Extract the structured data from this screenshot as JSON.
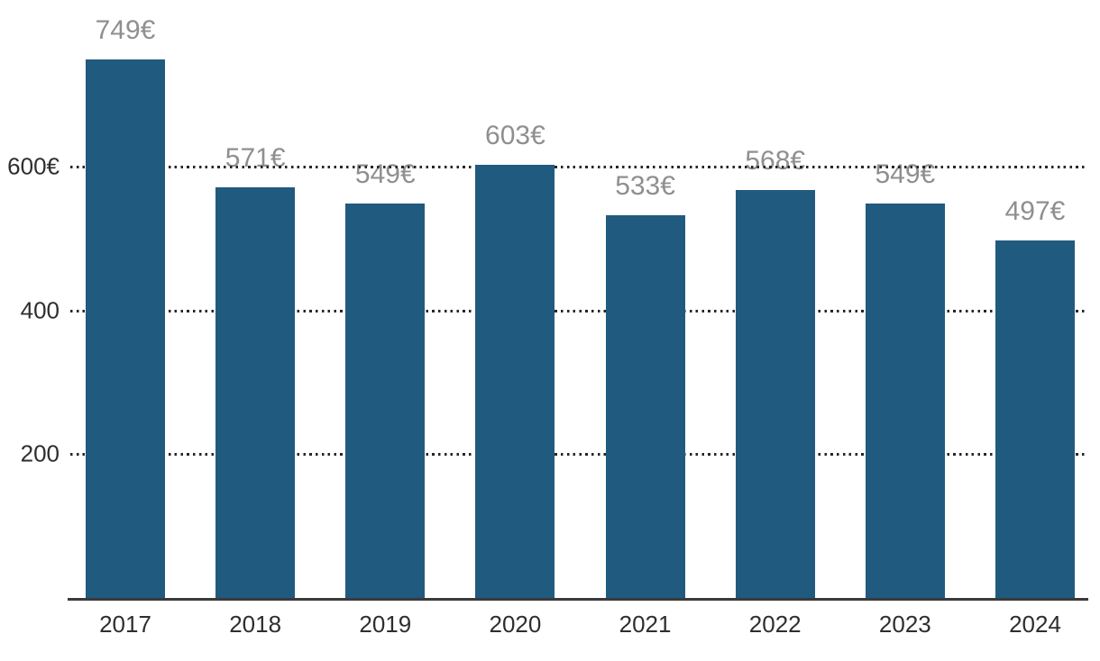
{
  "chart_data": {
    "type": "bar",
    "title": "",
    "xlabel": "",
    "ylabel": "",
    "categories": [
      "2017",
      "2018",
      "2019",
      "2020",
      "2021",
      "2022",
      "2023",
      "2024"
    ],
    "values": [
      749,
      571,
      549,
      603,
      533,
      568,
      549,
      497
    ],
    "bar_labels": [
      "749€",
      "571€",
      "549€",
      "603€",
      "533€",
      "568€",
      "549€",
      "497€"
    ],
    "y_ticks": [
      {
        "value": 200,
        "label": "200"
      },
      {
        "value": 400,
        "label": "400"
      },
      {
        "value": 600,
        "label": "600€"
      }
    ],
    "ylim": [
      0,
      830
    ],
    "grid": "horizontal-dotted",
    "gridlines_over_value_labels": true,
    "legend_position": "none",
    "colors": {
      "bar": "#215a7f",
      "bar_label": "#8f8f8f",
      "axis_text": "#2e2e2e",
      "axis_line": "#3a3a3a",
      "gridline": "#262626",
      "background": "#ffffff"
    }
  }
}
